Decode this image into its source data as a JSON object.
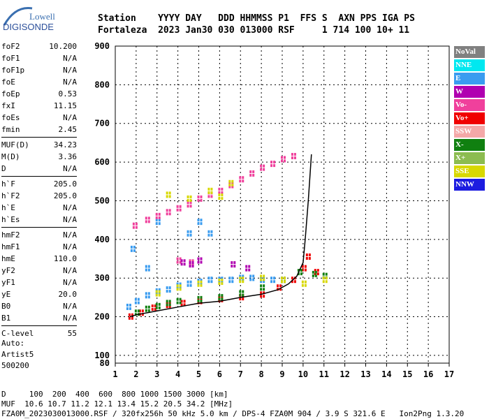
{
  "logo": {
    "line1": "Lowell",
    "line2": "DIGISONDE"
  },
  "header": {
    "line1": "Station    YYYY DAY   DDD HHMMSS P1  FFS S  AXN PPS IGA PS",
    "line2": "Fortaleza  2023 Jan30 030 013000 RSF     1 714 100 10+ 11"
  },
  "params": [
    {
      "name": "foF2",
      "value": "10.200"
    },
    {
      "name": "foF1",
      "value": "N/A"
    },
    {
      "name": "foF1p",
      "value": "N/A"
    },
    {
      "name": "foE",
      "value": "N/A"
    },
    {
      "name": "foEp",
      "value": "0.53"
    },
    {
      "name": "fxI",
      "value": "11.15"
    },
    {
      "name": "foEs",
      "value": "N/A"
    },
    {
      "name": "fmin",
      "value": "2.45"
    },
    {
      "name": "MUF(D)",
      "value": "34.23",
      "sep": true
    },
    {
      "name": "M(D)",
      "value": "3.36"
    },
    {
      "name": "D",
      "value": "N/A"
    },
    {
      "name": "h`F",
      "value": "205.0",
      "sep": true
    },
    {
      "name": "h`F2",
      "value": "205.0"
    },
    {
      "name": "h`E",
      "value": "N/A"
    },
    {
      "name": "h`Es",
      "value": "N/A"
    },
    {
      "name": "hmF2",
      "value": "N/A",
      "sep": true
    },
    {
      "name": "hmF1",
      "value": "N/A"
    },
    {
      "name": "hmE",
      "value": "110.0"
    },
    {
      "name": "yF2",
      "value": "N/A"
    },
    {
      "name": "yF1",
      "value": "N/A"
    },
    {
      "name": "yE",
      "value": "20.0"
    },
    {
      "name": "B0",
      "value": "N/A"
    },
    {
      "name": "B1",
      "value": "N/A"
    },
    {
      "name": "C-level",
      "value": "55",
      "sep": true
    }
  ],
  "auto": {
    "line1": "Auto:",
    "line2": "Artist5",
    "line3": "500200"
  },
  "legend": [
    {
      "label": "NoVal",
      "color": "#808080"
    },
    {
      "label": "NNE",
      "color": "#00e8f0"
    },
    {
      "label": "E",
      "color": "#3a9cf0"
    },
    {
      "label": "W",
      "color": "#b000b0"
    },
    {
      "label": "Vo-",
      "color": "#f0409c"
    },
    {
      "label": "Vo+",
      "color": "#f00000"
    },
    {
      "label": "SSW",
      "color": "#f4a8a8"
    },
    {
      "label": "X-",
      "color": "#108010"
    },
    {
      "label": "X+",
      "color": "#8cbc50"
    },
    {
      "label": "SSE",
      "color": "#d8d800"
    },
    {
      "label": "NNW",
      "color": "#1c1ce0"
    }
  ],
  "footer": {
    "line1": "D     100  200  400  600  800 1000 1500 3000 [km]",
    "line2": "MUF  10.6 10.7 11.2 12.1 13.4 15.2 20.5 34.2 [MHz]",
    "line3": "FZA0M_2023030013000.RSF / 320fx256h 50 kHz 5.0 km / DPS-4 FZA0M 904 / 3.9 S 321.6 E   Ion2Png 1.3.20"
  },
  "chart_data": {
    "type": "scatter",
    "xlim": [
      1,
      17
    ],
    "ylim": [
      80,
      900
    ],
    "xticks": [
      1,
      2,
      3,
      4,
      5,
      6,
      7,
      8,
      9,
      10,
      11,
      12,
      13,
      14,
      15,
      16,
      17
    ],
    "yticks": [
      100,
      200,
      300,
      400,
      500,
      600,
      700,
      800,
      900
    ],
    "ybottom_label": "80",
    "grid": true,
    "legend_position": "right",
    "series": [
      {
        "name": "E",
        "color": "#3a9cf0",
        "points": [
          [
            1.6,
            230
          ],
          [
            2,
            245
          ],
          [
            2.5,
            260
          ],
          [
            3,
            270
          ],
          [
            3.5,
            275
          ],
          [
            4,
            285
          ],
          [
            4.5,
            290
          ],
          [
            5,
            295
          ],
          [
            5.5,
            300
          ],
          [
            6,
            300
          ],
          [
            6.5,
            300
          ],
          [
            7,
            305
          ],
          [
            7.5,
            305
          ],
          [
            8,
            300
          ],
          [
            8.5,
            300
          ],
          [
            9,
            300
          ],
          [
            1.8,
            380
          ],
          [
            2.5,
            330
          ],
          [
            3,
            450
          ],
          [
            4.5,
            420
          ],
          [
            5,
            450
          ],
          [
            5.5,
            420
          ]
        ]
      },
      {
        "name": "Vo+",
        "color": "#f00000",
        "points": [
          [
            1.7,
            205
          ],
          [
            2.2,
            215
          ],
          [
            2.8,
            228
          ],
          [
            3.5,
            235
          ],
          [
            4.2,
            240
          ],
          [
            5,
            245
          ],
          [
            6,
            250
          ],
          [
            7,
            255
          ],
          [
            8,
            262
          ],
          [
            8.8,
            280
          ],
          [
            9.5,
            300
          ],
          [
            10,
            330
          ],
          [
            10.2,
            360
          ],
          [
            10.6,
            320
          ]
        ]
      },
      {
        "name": "Vo-",
        "color": "#f0409c",
        "points": [
          [
            1.9,
            440
          ],
          [
            2.5,
            455
          ],
          [
            3,
            465
          ],
          [
            3.5,
            475
          ],
          [
            4,
            485
          ],
          [
            4.5,
            495
          ],
          [
            5,
            510
          ],
          [
            5.5,
            520
          ],
          [
            6,
            530
          ],
          [
            6.5,
            545
          ],
          [
            7,
            560
          ],
          [
            7.5,
            575
          ],
          [
            8,
            590
          ],
          [
            8.5,
            600
          ],
          [
            9,
            612
          ],
          [
            9.5,
            620
          ],
          [
            4,
            350
          ],
          [
            4.6,
            345
          ]
        ]
      },
      {
        "name": "X-",
        "color": "#108010",
        "points": [
          [
            2,
            215
          ],
          [
            2.5,
            225
          ],
          [
            3,
            232
          ],
          [
            3.5,
            240
          ],
          [
            4,
            245
          ],
          [
            5,
            250
          ],
          [
            6,
            255
          ],
          [
            7,
            265
          ],
          [
            8,
            280
          ],
          [
            9,
            300
          ],
          [
            9.8,
            320
          ],
          [
            10.5,
            315
          ],
          [
            11,
            310
          ]
        ]
      },
      {
        "name": "SSE",
        "color": "#d8d800",
        "points": [
          [
            3,
            265
          ],
          [
            4,
            280
          ],
          [
            5,
            290
          ],
          [
            6,
            295
          ],
          [
            7,
            300
          ],
          [
            8,
            305
          ],
          [
            9,
            300
          ],
          [
            10,
            290
          ],
          [
            11,
            300
          ],
          [
            3.5,
            520
          ],
          [
            4.5,
            510
          ],
          [
            5.5,
            530
          ],
          [
            6,
            515
          ],
          [
            6.5,
            550
          ]
        ]
      },
      {
        "name": "W",
        "color": "#b000b0",
        "points": [
          [
            4.2,
            345
          ],
          [
            4.6,
            340
          ],
          [
            5,
            350
          ],
          [
            6.6,
            340
          ],
          [
            7.3,
            330
          ]
        ]
      }
    ],
    "trace": [
      [
        1.7,
        200
      ],
      [
        2,
        205
      ],
      [
        3,
        215
      ],
      [
        4,
        225
      ],
      [
        5,
        235
      ],
      [
        6,
        240
      ],
      [
        7,
        250
      ],
      [
        8,
        258
      ],
      [
        8.8,
        270
      ],
      [
        9.3,
        285
      ],
      [
        9.7,
        305
      ],
      [
        10,
        340
      ],
      [
        10.1,
        400
      ],
      [
        10.25,
        500
      ],
      [
        10.35,
        580
      ],
      [
        10.4,
        620
      ]
    ]
  }
}
